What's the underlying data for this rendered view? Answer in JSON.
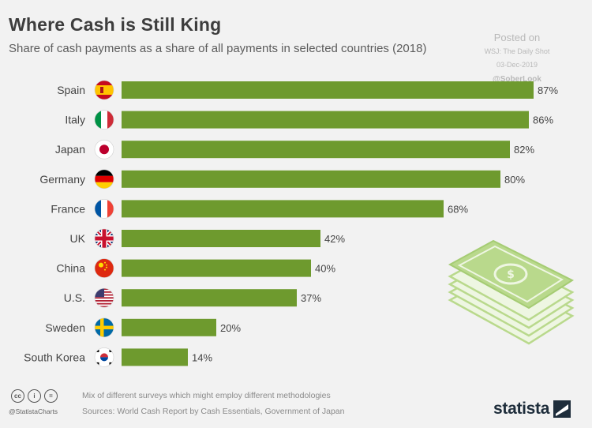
{
  "header": {
    "title": "Where Cash is Still King",
    "subtitle": "Share of cash payments as a share of all payments in selected countries (2018)"
  },
  "watermark": {
    "posted": "Posted on",
    "source": "WSJ: The Daily Shot",
    "date": "03-Dec-2019",
    "handle": "@SoberLook"
  },
  "footer": {
    "cc_icons": [
      "cc",
      "i",
      "="
    ],
    "handle": "@StatistaCharts",
    "note": "Mix of different surveys which might employ different methodologies",
    "source": "Sources: World Cash Report by Cash Essentials, Government of Japan",
    "logo": "statista"
  },
  "colors": {
    "bar": "#6e9a2e",
    "background": "#f2f2f2",
    "money": "#b9d98c"
  },
  "chart_data": {
    "type": "bar",
    "orientation": "horizontal",
    "categories": [
      "Spain",
      "Italy",
      "Japan",
      "Germany",
      "France",
      "UK",
      "China",
      "U.S.",
      "Sweden",
      "South Korea"
    ],
    "values": [
      87,
      86,
      82,
      80,
      68,
      42,
      40,
      37,
      20,
      14
    ],
    "value_labels": [
      "87%",
      "86%",
      "82%",
      "80%",
      "68%",
      "42%",
      "40%",
      "37%",
      "20%",
      "14%"
    ],
    "flags": [
      "spain-flag-icon",
      "italy-flag-icon",
      "japan-flag-icon",
      "germany-flag-icon",
      "france-flag-icon",
      "uk-flag-icon",
      "china-flag-icon",
      "us-flag-icon",
      "sweden-flag-icon",
      "south-korea-flag-icon"
    ],
    "unit": "%",
    "xlim": [
      0,
      100
    ],
    "grid": false,
    "legend": "none"
  }
}
